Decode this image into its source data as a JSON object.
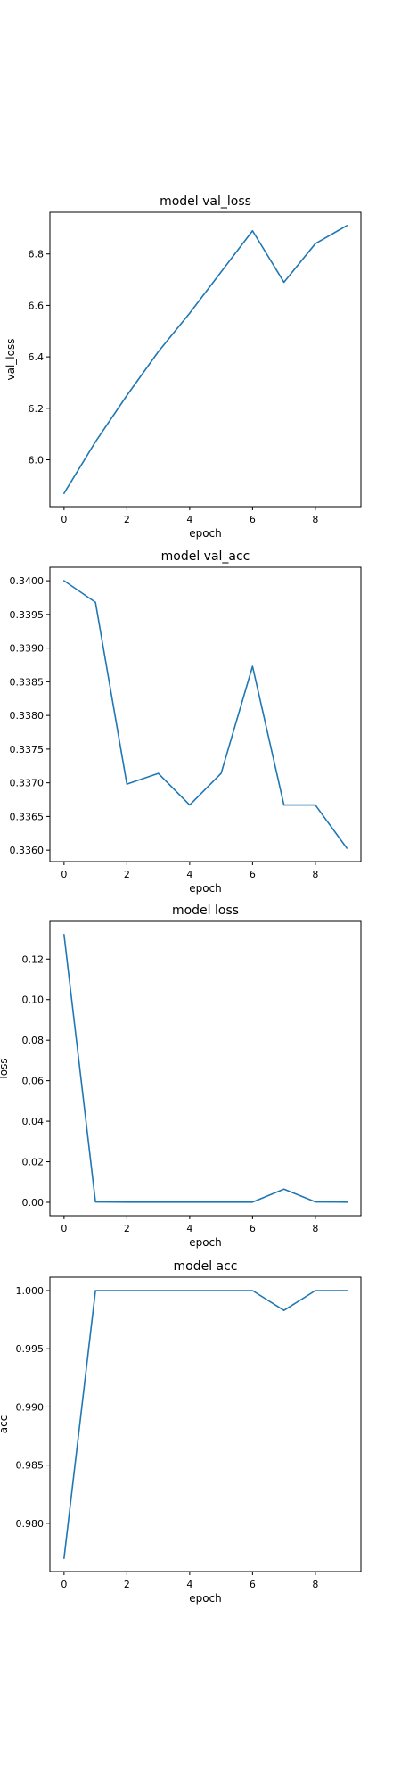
{
  "figure": {
    "line_color": "#1f77b4"
  },
  "chart_data": [
    {
      "type": "line",
      "title": "model val_loss",
      "xlabel": "epoch",
      "ylabel": "val_loss",
      "x": [
        0,
        1,
        2,
        3,
        4,
        5,
        6,
        7,
        8,
        9
      ],
      "xticks": [
        0,
        2,
        4,
        6,
        8
      ],
      "xlim": [
        -0.45,
        9.45
      ],
      "series": [
        {
          "values": [
            5.87,
            6.07,
            6.25,
            6.42,
            6.57,
            6.73,
            6.89,
            6.69,
            6.84,
            6.91
          ]
        }
      ],
      "yticks": [
        6.0,
        6.2,
        6.4,
        6.6,
        6.8
      ],
      "ytick_decimals": 1,
      "ylim": [
        5.818,
        6.962
      ],
      "grid": false
    },
    {
      "type": "line",
      "title": "model val_acc",
      "xlabel": "epoch",
      "ylabel": "",
      "x": [
        0,
        1,
        2,
        3,
        4,
        5,
        6,
        7,
        8,
        9
      ],
      "xticks": [
        0,
        2,
        4,
        6,
        8
      ],
      "xlim": [
        -0.45,
        9.45
      ],
      "series": [
        {
          "values": [
            0.34,
            0.33968,
            0.33698,
            0.33714,
            0.33667,
            0.33714,
            0.33873,
            0.33667,
            0.33667,
            0.33603
          ]
        }
      ],
      "yticks": [
        0.336,
        0.3365,
        0.337,
        0.3375,
        0.338,
        0.3385,
        0.339,
        0.3395,
        0.34
      ],
      "ytick_decimals": 4,
      "ylim": [
        0.33583,
        0.3402
      ],
      "grid": false
    },
    {
      "type": "line",
      "title": "model loss",
      "xlabel": "epoch",
      "ylabel": "loss",
      "x": [
        0,
        1,
        2,
        3,
        4,
        5,
        6,
        7,
        8,
        9
      ],
      "xticks": [
        0,
        2,
        4,
        6,
        8
      ],
      "xlim": [
        -0.45,
        9.45
      ],
      "series": [
        {
          "values": [
            0.132,
            0.0002,
            0.0001,
            0.0001,
            0.0001,
            0.0001,
            0.0001,
            0.0065,
            0.0002,
            0.0001
          ]
        }
      ],
      "yticks": [
        0.0,
        0.02,
        0.04,
        0.06,
        0.08,
        0.1,
        0.12
      ],
      "ytick_decimals": 2,
      "ylim": [
        -0.0066,
        0.1386
      ],
      "grid": false
    },
    {
      "type": "line",
      "title": "model acc",
      "xlabel": "epoch",
      "ylabel": "acc",
      "x": [
        0,
        1,
        2,
        3,
        4,
        5,
        6,
        7,
        8,
        9
      ],
      "xticks": [
        0,
        2,
        4,
        6,
        8
      ],
      "xlim": [
        -0.45,
        9.45
      ],
      "series": [
        {
          "values": [
            0.977,
            1.0,
            1.0,
            1.0,
            1.0,
            1.0,
            1.0,
            0.9983,
            1.0,
            1.0
          ]
        }
      ],
      "yticks": [
        0.98,
        0.985,
        0.99,
        0.995,
        1.0
      ],
      "ytick_decimals": 3,
      "ylim": [
        0.97585,
        1.00115
      ],
      "grid": false
    }
  ]
}
